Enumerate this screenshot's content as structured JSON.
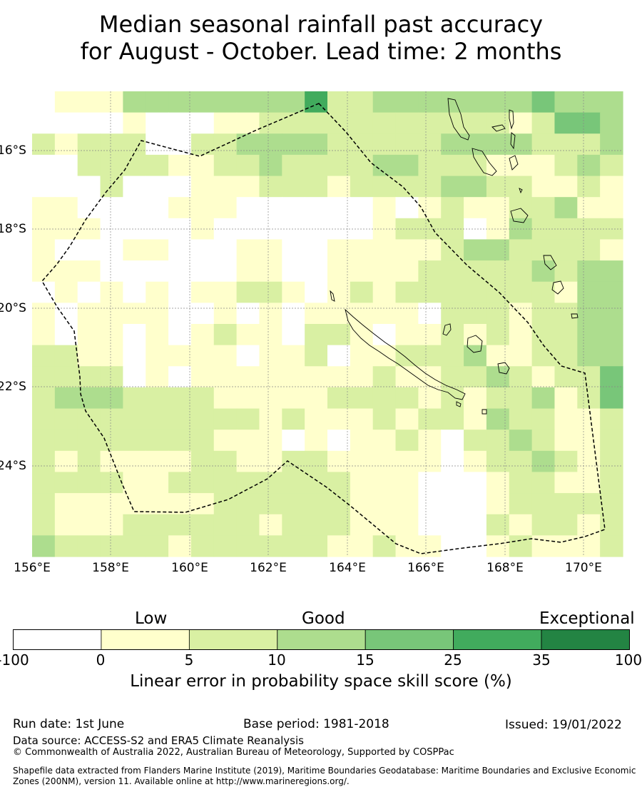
{
  "title": {
    "line1": "Median seasonal rainfall past accuracy",
    "line2": "for August - October. Lead time: 2 months"
  },
  "map": {
    "lon_labels": [
      "156°E",
      "158°E",
      "160°E",
      "162°E",
      "164°E",
      "166°E",
      "168°E",
      "170°E"
    ],
    "lat_labels": [
      "16°S",
      "18°S",
      "20°S",
      "22°S",
      "24°S"
    ],
    "grid_rows": [
      "01113333333352233333334333",
      "00001000112222222222212443",
      "21222002233332222233332223",
      "00222211223222233222111232",
      "00020001112221222233221121",
      "11000011100000010121122311",
      "11100001000000012220132222",
      "10001100011001111123322221",
      "11100000011001111222223233",
      "01010101122101212222222133",
      "10111100101011111022212233",
      "10110101211022101121212233",
      "22110111101120112223112233",
      "22220101111111121122321224",
      "23332222111112222121223124",
      "22222222221211121221322112",
      "22222222111010112102232112",
      "21211112211221111101223212",
      "22221122222222111000122112",
      "21111111222222111000122222",
      "21112222221222111000212212",
      "32222212222221121100121112"
    ],
    "colors": [
      "#ffffff",
      "#ffffcc",
      "#d9f0a3",
      "#addd8e",
      "#78c679",
      "#41ab5d",
      "#238443"
    ]
  },
  "colorbar": {
    "categories": [
      "Low",
      "Good",
      "Exceptional"
    ],
    "tick_labels": [
      "-100",
      "0",
      "5",
      "10",
      "15",
      "25",
      "35",
      "100"
    ],
    "title": "Linear error in probability space skill score (%)"
  },
  "footer": {
    "run_date": "Run date: 1st June",
    "base_period": "Base period: 1981-2018",
    "issued": "Issued: 19/01/2022",
    "data_source": "Data source: ACCESS-S2 and ERA5 Climate Reanalysis",
    "copyright": "© Commonwealth of Australia 2022, Australian Bureau of Meteorology, Supported by COSPPac",
    "shapefile_line1": "Shapefile data extracted from Flanders Marine Institute (2019), Maritime Boundaries Geodatabase: Maritime Boundaries and Exclusive Economic",
    "shapefile_line2": "Zones (200NM), version 11. Available online at http://www.marineregions.org/."
  }
}
